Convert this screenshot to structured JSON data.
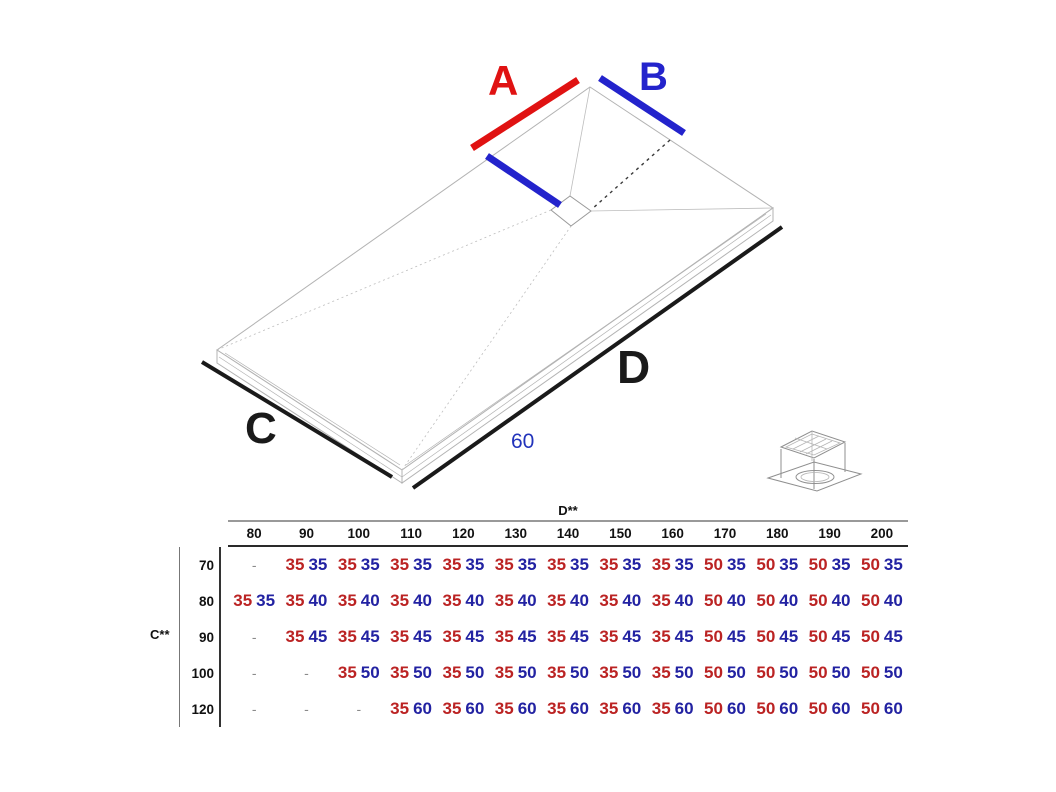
{
  "diagram": {
    "label_a": "A",
    "label_b": "B",
    "label_c": "C",
    "label_d": "D",
    "depth_label": "60"
  },
  "colors": {
    "dim_a_red": "#e01212",
    "dim_b_blue": "#2323cc",
    "dim_cd_black": "#1a1a1a",
    "depth_blue": "#2233bb",
    "table_value_red": "#bb2323",
    "table_value_blue": "#2222a2",
    "table_line_gray": "#999999",
    "table_line_black": "#2a2a2a",
    "tray_outline": "#b3b3b3"
  },
  "table": {
    "col_axis_label": "D**",
    "row_axis_label": "C**",
    "columns": [
      "80",
      "90",
      "100",
      "110",
      "120",
      "130",
      "140",
      "150",
      "160",
      "170",
      "180",
      "190",
      "200"
    ],
    "rows": [
      {
        "label": "70",
        "cells": [
          [
            "-"
          ],
          [
            "35",
            "35"
          ],
          [
            "35",
            "35"
          ],
          [
            "35",
            "35"
          ],
          [
            "35",
            "35"
          ],
          [
            "35",
            "35"
          ],
          [
            "35",
            "35"
          ],
          [
            "35",
            "35"
          ],
          [
            "35",
            "35"
          ],
          [
            "50",
            "35"
          ],
          [
            "50",
            "35"
          ],
          [
            "50",
            "35"
          ],
          [
            "50",
            "35"
          ]
        ]
      },
      {
        "label": "80",
        "cells": [
          [
            "35",
            "35"
          ],
          [
            "35",
            "40"
          ],
          [
            "35",
            "40"
          ],
          [
            "35",
            "40"
          ],
          [
            "35",
            "40"
          ],
          [
            "35",
            "40"
          ],
          [
            "35",
            "40"
          ],
          [
            "35",
            "40"
          ],
          [
            "35",
            "40"
          ],
          [
            "50",
            "40"
          ],
          [
            "50",
            "40"
          ],
          [
            "50",
            "40"
          ],
          [
            "50",
            "40"
          ]
        ]
      },
      {
        "label": "90",
        "cells": [
          [
            "-"
          ],
          [
            "35",
            "45"
          ],
          [
            "35",
            "45"
          ],
          [
            "35",
            "45"
          ],
          [
            "35",
            "45"
          ],
          [
            "35",
            "45"
          ],
          [
            "35",
            "45"
          ],
          [
            "35",
            "45"
          ],
          [
            "35",
            "45"
          ],
          [
            "50",
            "45"
          ],
          [
            "50",
            "45"
          ],
          [
            "50",
            "45"
          ],
          [
            "50",
            "45"
          ]
        ]
      },
      {
        "label": "100",
        "cells": [
          [
            "-"
          ],
          [
            "-"
          ],
          [
            "35",
            "50"
          ],
          [
            "35",
            "50"
          ],
          [
            "35",
            "50"
          ],
          [
            "35",
            "50"
          ],
          [
            "35",
            "50"
          ],
          [
            "35",
            "50"
          ],
          [
            "35",
            "50"
          ],
          [
            "50",
            "50"
          ],
          [
            "50",
            "50"
          ],
          [
            "50",
            "50"
          ],
          [
            "50",
            "50"
          ]
        ]
      },
      {
        "label": "120",
        "cells": [
          [
            "-"
          ],
          [
            "-"
          ],
          [
            "-"
          ],
          [
            "35",
            "60"
          ],
          [
            "35",
            "60"
          ],
          [
            "35",
            "60"
          ],
          [
            "35",
            "60"
          ],
          [
            "35",
            "60"
          ],
          [
            "35",
            "60"
          ],
          [
            "50",
            "60"
          ],
          [
            "50",
            "60"
          ],
          [
            "50",
            "60"
          ],
          [
            "50",
            "60"
          ]
        ]
      }
    ]
  }
}
